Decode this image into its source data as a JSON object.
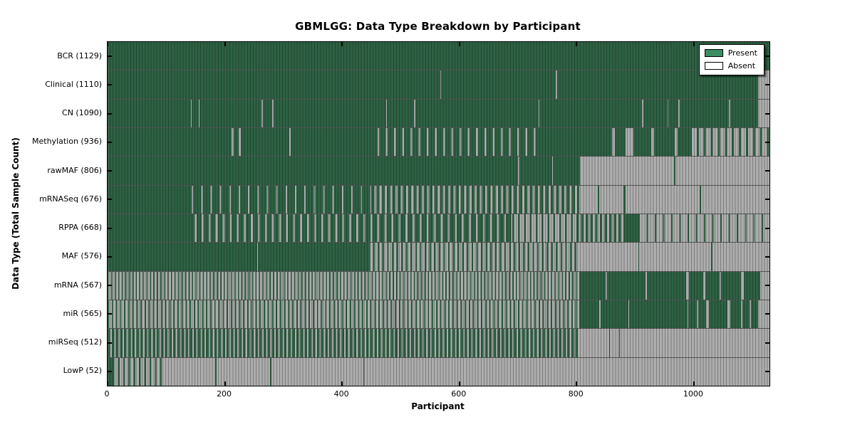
{
  "figure": {
    "title": "GBMLGG: Data Type Breakdown by Participant"
  },
  "chart_data": {
    "type": "heatmap",
    "title": "GBMLGG: Data Type Breakdown by Participant",
    "xlabel": "Participant",
    "ylabel": "Data Type (Total Sample Count)",
    "xlim": [
      0,
      1129
    ],
    "x_ticks": [
      0,
      200,
      400,
      600,
      800,
      1000
    ],
    "grid": false,
    "legend": {
      "position": "upper right",
      "entries": [
        {
          "label": "Present",
          "color": "#3a8e63"
        },
        {
          "label": "Absent",
          "color": "#ffffff"
        }
      ]
    },
    "colors": {
      "present_fill": "#2e6144",
      "absent_fill": "#adadad",
      "frame": "#000000"
    },
    "rows": [
      {
        "label": "BCR",
        "count": 1129,
        "segments": [
          {
            "from": 0,
            "to": 1129,
            "state": "present"
          }
        ]
      },
      {
        "label": "Clinical",
        "count": 1110,
        "segments": [
          {
            "from": 0,
            "to": 567,
            "state": "present"
          },
          {
            "from": 567,
            "to": 569,
            "state": "absent"
          },
          {
            "from": 569,
            "to": 765,
            "state": "present"
          },
          {
            "from": 765,
            "to": 767,
            "state": "absent"
          },
          {
            "from": 767,
            "to": 1110,
            "state": "present"
          },
          {
            "from": 1110,
            "to": 1129,
            "state": "absent"
          }
        ]
      },
      {
        "label": "CN",
        "count": 1090,
        "segments": [
          {
            "from": 0,
            "to": 142,
            "state": "present"
          },
          {
            "from": 142,
            "to": 144,
            "state": "absent"
          },
          {
            "from": 144,
            "to": 155,
            "state": "present"
          },
          {
            "from": 155,
            "to": 157,
            "state": "absent"
          },
          {
            "from": 157,
            "to": 263,
            "state": "present"
          },
          {
            "from": 263,
            "to": 265,
            "state": "absent"
          },
          {
            "from": 265,
            "to": 281,
            "state": "present"
          },
          {
            "from": 281,
            "to": 283,
            "state": "absent"
          },
          {
            "from": 283,
            "to": 475,
            "state": "present"
          },
          {
            "from": 475,
            "to": 477,
            "state": "absent"
          },
          {
            "from": 477,
            "to": 523,
            "state": "present"
          },
          {
            "from": 523,
            "to": 525,
            "state": "absent"
          },
          {
            "from": 525,
            "to": 735,
            "state": "present"
          },
          {
            "from": 735,
            "to": 737,
            "state": "absent"
          },
          {
            "from": 737,
            "to": 912,
            "state": "present"
          },
          {
            "from": 912,
            "to": 914,
            "state": "absent"
          },
          {
            "from": 914,
            "to": 955,
            "state": "present"
          },
          {
            "from": 955,
            "to": 957,
            "state": "absent"
          },
          {
            "from": 957,
            "to": 974,
            "state": "present"
          },
          {
            "from": 974,
            "to": 976,
            "state": "absent"
          },
          {
            "from": 976,
            "to": 1060,
            "state": "present"
          },
          {
            "from": 1060,
            "to": 1062,
            "state": "absent"
          },
          {
            "from": 1062,
            "to": 1110,
            "state": "present"
          },
          {
            "from": 1110,
            "to": 1129,
            "state": "absent"
          }
        ]
      },
      {
        "label": "Methylation",
        "count": 936,
        "segments": [
          {
            "from": 0,
            "to": 212,
            "state": "present"
          },
          {
            "from": 212,
            "to": 215,
            "state": "absent"
          },
          {
            "from": 215,
            "to": 224,
            "state": "present"
          },
          {
            "from": 224,
            "to": 227,
            "state": "absent"
          },
          {
            "from": 227,
            "to": 310,
            "state": "present"
          },
          {
            "from": 310,
            "to": 312,
            "state": "absent"
          },
          {
            "from": 312,
            "to": 450,
            "state": "present"
          },
          {
            "from": 450,
            "to": 740,
            "state": "mixed",
            "fraction": 0.78,
            "period": 14
          },
          {
            "from": 740,
            "to": 860,
            "state": "present"
          },
          {
            "from": 860,
            "to": 865,
            "state": "absent"
          },
          {
            "from": 865,
            "to": 884,
            "state": "present"
          },
          {
            "from": 884,
            "to": 897,
            "state": "absent"
          },
          {
            "from": 897,
            "to": 928,
            "state": "present"
          },
          {
            "from": 928,
            "to": 932,
            "state": "absent"
          },
          {
            "from": 932,
            "to": 968,
            "state": "present"
          },
          {
            "from": 968,
            "to": 972,
            "state": "absent"
          },
          {
            "from": 972,
            "to": 993,
            "state": "present"
          },
          {
            "from": 993,
            "to": 1129,
            "state": "mixed",
            "fraction": 0.3,
            "period": 12
          }
        ]
      },
      {
        "label": "rawMAF",
        "count": 806,
        "segments": [
          {
            "from": 0,
            "to": 700,
            "state": "present"
          },
          {
            "from": 700,
            "to": 702,
            "state": "absent"
          },
          {
            "from": 702,
            "to": 758,
            "state": "present"
          },
          {
            "from": 758,
            "to": 760,
            "state": "absent"
          },
          {
            "from": 760,
            "to": 806,
            "state": "present"
          },
          {
            "from": 806,
            "to": 966,
            "state": "absent"
          },
          {
            "from": 966,
            "to": 969,
            "state": "present"
          },
          {
            "from": 969,
            "to": 1129,
            "state": "absent"
          }
        ]
      },
      {
        "label": "mRNASeq",
        "count": 676,
        "segments": [
          {
            "from": 0,
            "to": 130,
            "state": "present"
          },
          {
            "from": 130,
            "to": 450,
            "state": "mixed",
            "fraction": 0.85,
            "period": 16
          },
          {
            "from": 450,
            "to": 805,
            "state": "mixed",
            "fraction": 0.58,
            "period": 9
          },
          {
            "from": 805,
            "to": 836,
            "state": "absent"
          },
          {
            "from": 836,
            "to": 839,
            "state": "present"
          },
          {
            "from": 839,
            "to": 880,
            "state": "absent"
          },
          {
            "from": 880,
            "to": 883,
            "state": "present"
          },
          {
            "from": 883,
            "to": 1010,
            "state": "absent"
          },
          {
            "from": 1010,
            "to": 1013,
            "state": "present"
          },
          {
            "from": 1013,
            "to": 1129,
            "state": "absent"
          }
        ]
      },
      {
        "label": "RPPA",
        "count": 668,
        "segments": [
          {
            "from": 0,
            "to": 140,
            "state": "present"
          },
          {
            "from": 140,
            "to": 690,
            "state": "mixed",
            "fraction": 0.72,
            "period": 12
          },
          {
            "from": 690,
            "to": 800,
            "state": "mixed",
            "fraction": 0.3,
            "period": 10
          },
          {
            "from": 800,
            "to": 883,
            "state": "mixed",
            "fraction": 0.5,
            "period": 8
          },
          {
            "from": 883,
            "to": 905,
            "state": "present"
          },
          {
            "from": 905,
            "to": 1129,
            "state": "mixed",
            "fraction": 0.17,
            "period": 14
          }
        ]
      },
      {
        "label": "MAF",
        "count": 576,
        "segments": [
          {
            "from": 0,
            "to": 255,
            "state": "present"
          },
          {
            "from": 255,
            "to": 257,
            "state": "absent"
          },
          {
            "from": 257,
            "to": 445,
            "state": "present"
          },
          {
            "from": 445,
            "to": 800,
            "state": "mixed",
            "fraction": 0.36,
            "period": 8
          },
          {
            "from": 800,
            "to": 905,
            "state": "absent"
          },
          {
            "from": 905,
            "to": 907,
            "state": "present"
          },
          {
            "from": 907,
            "to": 1030,
            "state": "absent"
          },
          {
            "from": 1030,
            "to": 1032,
            "state": "present"
          },
          {
            "from": 1032,
            "to": 1129,
            "state": "absent"
          }
        ]
      },
      {
        "label": "mRNA",
        "count": 567,
        "segments": [
          {
            "from": 0,
            "to": 805,
            "state": "mixed",
            "fraction": 0.34,
            "period": 6
          },
          {
            "from": 805,
            "to": 850,
            "state": "present"
          },
          {
            "from": 850,
            "to": 852,
            "state": "absent"
          },
          {
            "from": 852,
            "to": 918,
            "state": "present"
          },
          {
            "from": 918,
            "to": 920,
            "state": "absent"
          },
          {
            "from": 920,
            "to": 987,
            "state": "present"
          },
          {
            "from": 987,
            "to": 992,
            "state": "absent"
          },
          {
            "from": 992,
            "to": 1016,
            "state": "present"
          },
          {
            "from": 1016,
            "to": 1020,
            "state": "absent"
          },
          {
            "from": 1020,
            "to": 1044,
            "state": "present"
          },
          {
            "from": 1044,
            "to": 1046,
            "state": "absent"
          },
          {
            "from": 1046,
            "to": 1080,
            "state": "present"
          },
          {
            "from": 1080,
            "to": 1085,
            "state": "absent"
          },
          {
            "from": 1085,
            "to": 1113,
            "state": "present"
          },
          {
            "from": 1113,
            "to": 1129,
            "state": "absent"
          }
        ]
      },
      {
        "label": "miR",
        "count": 565,
        "segments": [
          {
            "from": 0,
            "to": 805,
            "state": "mixed",
            "fraction": 0.34,
            "period": 7
          },
          {
            "from": 805,
            "to": 838,
            "state": "present"
          },
          {
            "from": 838,
            "to": 841,
            "state": "absent"
          },
          {
            "from": 841,
            "to": 888,
            "state": "present"
          },
          {
            "from": 888,
            "to": 890,
            "state": "absent"
          },
          {
            "from": 890,
            "to": 989,
            "state": "present"
          },
          {
            "from": 989,
            "to": 991,
            "state": "absent"
          },
          {
            "from": 991,
            "to": 1005,
            "state": "present"
          },
          {
            "from": 1005,
            "to": 1007,
            "state": "absent"
          },
          {
            "from": 1007,
            "to": 1021,
            "state": "present"
          },
          {
            "from": 1021,
            "to": 1026,
            "state": "absent"
          },
          {
            "from": 1026,
            "to": 1057,
            "state": "present"
          },
          {
            "from": 1057,
            "to": 1062,
            "state": "absent"
          },
          {
            "from": 1062,
            "to": 1080,
            "state": "present"
          },
          {
            "from": 1080,
            "to": 1083,
            "state": "absent"
          },
          {
            "from": 1083,
            "to": 1095,
            "state": "present"
          },
          {
            "from": 1095,
            "to": 1098,
            "state": "absent"
          },
          {
            "from": 1098,
            "to": 1110,
            "state": "present"
          },
          {
            "from": 1110,
            "to": 1129,
            "state": "absent"
          }
        ]
      },
      {
        "label": "miRSeq",
        "count": 512,
        "segments": [
          {
            "from": 0,
            "to": 805,
            "state": "mixed",
            "fraction": 0.62,
            "period": 7
          },
          {
            "from": 805,
            "to": 855,
            "state": "absent"
          },
          {
            "from": 855,
            "to": 857,
            "state": "present"
          },
          {
            "from": 857,
            "to": 872,
            "state": "absent"
          },
          {
            "from": 872,
            "to": 874,
            "state": "present"
          },
          {
            "from": 874,
            "to": 1129,
            "state": "absent"
          }
        ]
      },
      {
        "label": "LowP",
        "count": 52,
        "segments": [
          {
            "from": 0,
            "to": 9,
            "state": "present"
          },
          {
            "from": 9,
            "to": 92,
            "state": "mixed",
            "fraction": 0.32,
            "period": 9
          },
          {
            "from": 92,
            "to": 184,
            "state": "absent"
          },
          {
            "from": 184,
            "to": 186,
            "state": "present"
          },
          {
            "from": 186,
            "to": 277,
            "state": "absent"
          },
          {
            "from": 277,
            "to": 279,
            "state": "present"
          },
          {
            "from": 279,
            "to": 436,
            "state": "absent"
          },
          {
            "from": 436,
            "to": 438,
            "state": "present"
          },
          {
            "from": 438,
            "to": 1129,
            "state": "absent"
          }
        ]
      }
    ]
  }
}
